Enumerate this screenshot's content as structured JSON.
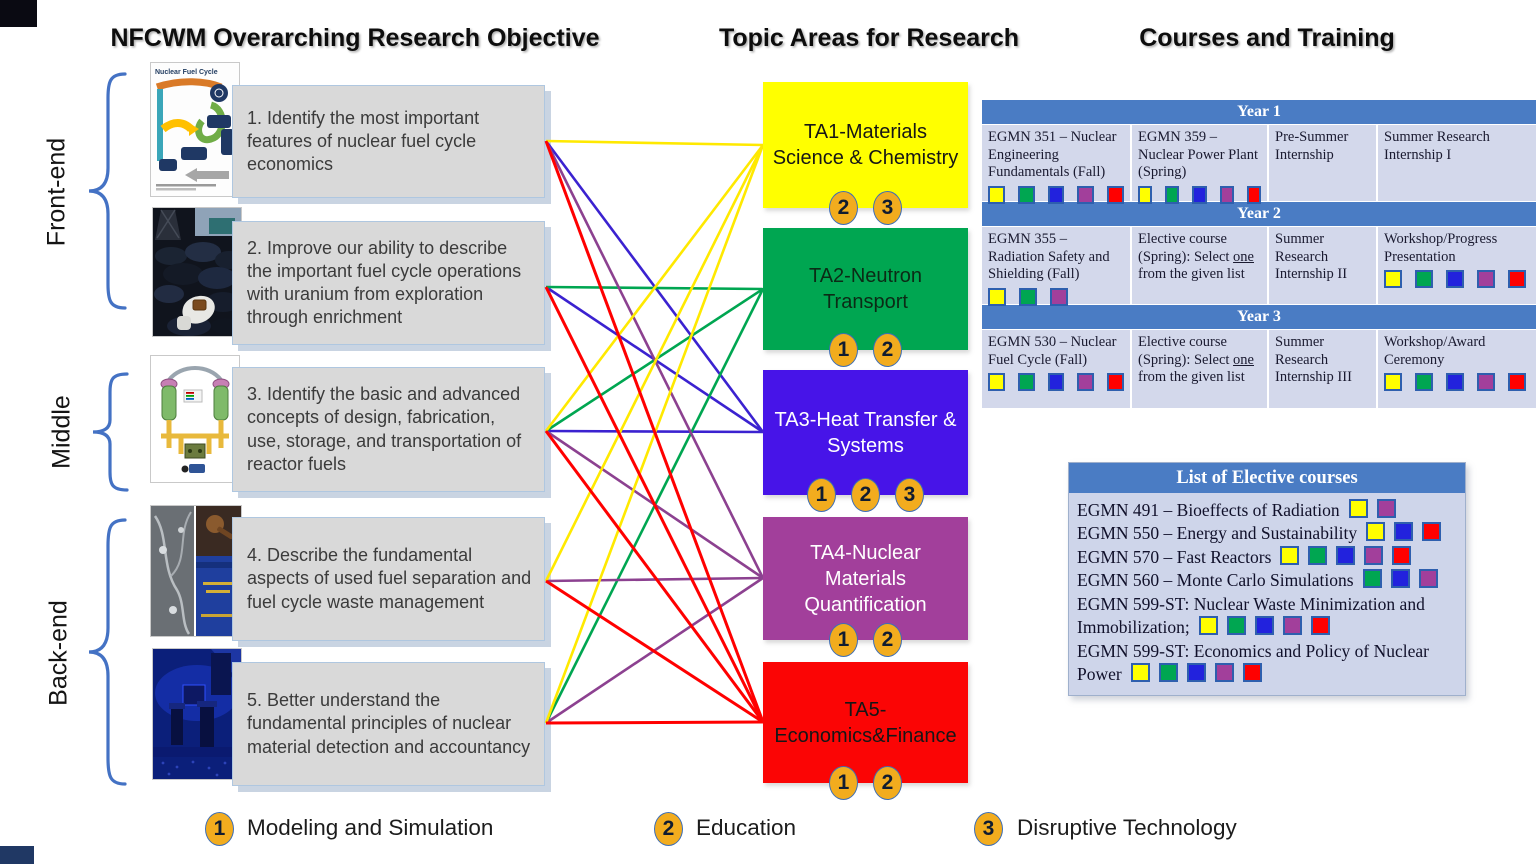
{
  "titles": {
    "left": "NFCWM Overarching Research Objective",
    "middle": "Topic Areas for Research",
    "right": "Courses and Training"
  },
  "groups": [
    {
      "label": "Front-end"
    },
    {
      "label": "Middle"
    },
    {
      "label": "Back-end"
    }
  ],
  "objectives": [
    {
      "text": "1. Identify the most important features of nuclear fuel cycle economics"
    },
    {
      "text": "2. Improve our ability to describe the important fuel cycle operations with uranium from exploration through enrichment"
    },
    {
      "text": "3. Identify the basic and advanced concepts of design, fabrication, use, storage, and transportation of reactor fuels"
    },
    {
      "text": "4. Describe the fundamental aspects of used fuel separation and fuel cycle waste management"
    },
    {
      "text": "5. Better understand the fundamental principles of nuclear material detection and accountancy"
    }
  ],
  "topic_areas": [
    {
      "id": "TA1",
      "label": "TA1-Materials Science & Chemistry",
      "color": "#FFFF00",
      "line_color": "#FFE900",
      "text_color": "#161616",
      "badges": [
        "2",
        "3"
      ]
    },
    {
      "id": "TA2",
      "label": "TA2-Neutron Transport",
      "color": "#00A651",
      "line_color": "#00A651",
      "text_color": "#0b2b16",
      "badges": [
        "1",
        "2"
      ]
    },
    {
      "id": "TA3",
      "label": "TA3-Heat Transfer & Systems",
      "color": "#4714E8",
      "line_color": "#3B22D0",
      "text_color": "#ffffff",
      "badges": [
        "1",
        "2",
        "3"
      ]
    },
    {
      "id": "TA4",
      "label": "TA4-Nuclear Materials Quantification",
      "color": "#A23F9B",
      "line_color": "#8C4190",
      "text_color": "#ffffff",
      "badges": [
        "1",
        "2"
      ]
    },
    {
      "id": "TA5",
      "label": "TA5-Economics&Finance",
      "color": "#FB0505",
      "line_color": "#FF0000",
      "text_color": "#161616",
      "badges": [
        "1",
        "2"
      ]
    }
  ],
  "connections": [
    {
      "objective": 1,
      "topic": "TA1"
    },
    {
      "objective": 3,
      "topic": "TA1"
    },
    {
      "objective": 4,
      "topic": "TA1"
    },
    {
      "objective": 5,
      "topic": "TA1"
    },
    {
      "objective": 2,
      "topic": "TA2"
    },
    {
      "objective": 3,
      "topic": "TA2"
    },
    {
      "objective": 5,
      "topic": "TA2"
    },
    {
      "objective": 1,
      "topic": "TA3"
    },
    {
      "objective": 2,
      "topic": "TA3"
    },
    {
      "objective": 3,
      "topic": "TA3"
    },
    {
      "objective": 1,
      "topic": "TA4"
    },
    {
      "objective": 3,
      "topic": "TA4"
    },
    {
      "objective": 4,
      "topic": "TA4"
    },
    {
      "objective": 5,
      "topic": "TA4"
    },
    {
      "objective": 1,
      "topic": "TA5"
    },
    {
      "objective": 2,
      "topic": "TA5"
    },
    {
      "objective": 3,
      "topic": "TA5"
    },
    {
      "objective": 4,
      "topic": "TA5"
    },
    {
      "objective": 5,
      "topic": "TA5"
    }
  ],
  "courses_table": {
    "years": [
      {
        "header": "Year 1",
        "cells": [
          {
            "text": "EGMN 351 – Nuclear Engineering Fundamentals (Fall)",
            "squares": [
              "yellow",
              "green",
              "blue",
              "purple",
              "red"
            ]
          },
          {
            "text": "EGMN 359 – Nuclear Power Plant (Spring)",
            "squares": [
              "yellow",
              "green",
              "blue",
              "purple",
              "red"
            ]
          },
          {
            "text": "Pre-Summer Internship",
            "squares": []
          },
          {
            "text": "Summer Research Internship I",
            "squares": []
          }
        ]
      },
      {
        "header": "Year 2",
        "cells": [
          {
            "text": "EGMN 355 – Radiation Safety and Shielding (Fall)",
            "squares": [
              "yellow",
              "green",
              "purple"
            ]
          },
          {
            "pre": "Elective course (Spring): Select ",
            "underline": "one",
            "post": " from the given list",
            "squares": []
          },
          {
            "text": "Summer Research Internship II",
            "squares": []
          },
          {
            "text": "Workshop/Progress Presentation",
            "squares": [
              "yellow",
              "green",
              "blue",
              "purple",
              "red"
            ]
          }
        ]
      },
      {
        "header": "Year 3",
        "cells": [
          {
            "text": "EGMN 530 – Nuclear Fuel Cycle (Fall)",
            "squares": [
              "yellow",
              "green",
              "blue",
              "purple",
              "red"
            ]
          },
          {
            "pre": "Elective course (Spring): Select ",
            "underline": "one",
            "post": " from the given list",
            "squares": []
          },
          {
            "text": "Summer Research Internship III",
            "squares": []
          },
          {
            "text": "Workshop/Award Ceremony",
            "squares": [
              "yellow",
              "green",
              "blue",
              "purple",
              "red"
            ]
          }
        ]
      }
    ]
  },
  "electives": {
    "header": "List of Elective courses",
    "items": [
      {
        "text": "EGMN 491 – Bioeffects of Radiation",
        "squares": [
          "yellow",
          "purple"
        ]
      },
      {
        "text": "EGMN 550 – Energy and Sustainability",
        "squares": [
          "yellow",
          "blue",
          "red"
        ]
      },
      {
        "text": "EGMN 570 – Fast Reactors",
        "squares": [
          "yellow",
          "green",
          "blue",
          "purple",
          "red"
        ]
      },
      {
        "text": "EGMN 560 – Monte Carlo Simulations",
        "squares": [
          "green",
          "blue",
          "purple"
        ]
      },
      {
        "text": "EGMN 599-ST: Nuclear Waste Minimization and Immobilization;",
        "squares": [
          "yellow",
          "green",
          "blue",
          "purple",
          "red"
        ]
      },
      {
        "text": "EGMN 599-ST: Economics and Policy of Nuclear Power",
        "squares": [
          "yellow",
          "green",
          "blue",
          "purple",
          "red"
        ]
      }
    ]
  },
  "legend": [
    {
      "num": "1",
      "label": "Modeling and Simulation"
    },
    {
      "num": "2",
      "label": "Education"
    },
    {
      "num": "3",
      "label": "Disruptive Technology"
    }
  ],
  "palette": {
    "yellow": "#FFFF00",
    "green": "#00A651",
    "blue": "#2222DD",
    "purple": "#A23F9B",
    "red": "#FF0000",
    "table_header": "#4A7CC4",
    "cell_bg": "#D3D8EB",
    "badge_fill": "#F2AC1E",
    "badge_border": "#3E6EB5",
    "brace": "#4472C4"
  }
}
